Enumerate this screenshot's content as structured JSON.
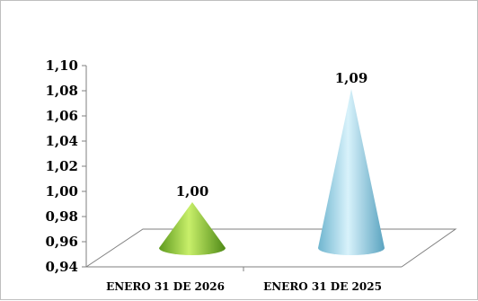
{
  "chart_data": {
    "type": "bar",
    "style": "3d-cone",
    "categories": [
      "ENERO 31 DE 2026",
      "ENERO 31 DE 2025"
    ],
    "values": [
      1.0,
      1.09
    ],
    "data_labels": [
      "1,00",
      "1,09"
    ],
    "colors": [
      "#8dc63f",
      "#8fd0e8"
    ],
    "ylim": [
      0.94,
      1.1
    ],
    "yticks": [
      "0,94",
      "0,96",
      "0,98",
      "1,00",
      "1,02",
      "1,04",
      "1,06",
      "1,08",
      "1,10"
    ],
    "grid": false,
    "legend": "none"
  }
}
